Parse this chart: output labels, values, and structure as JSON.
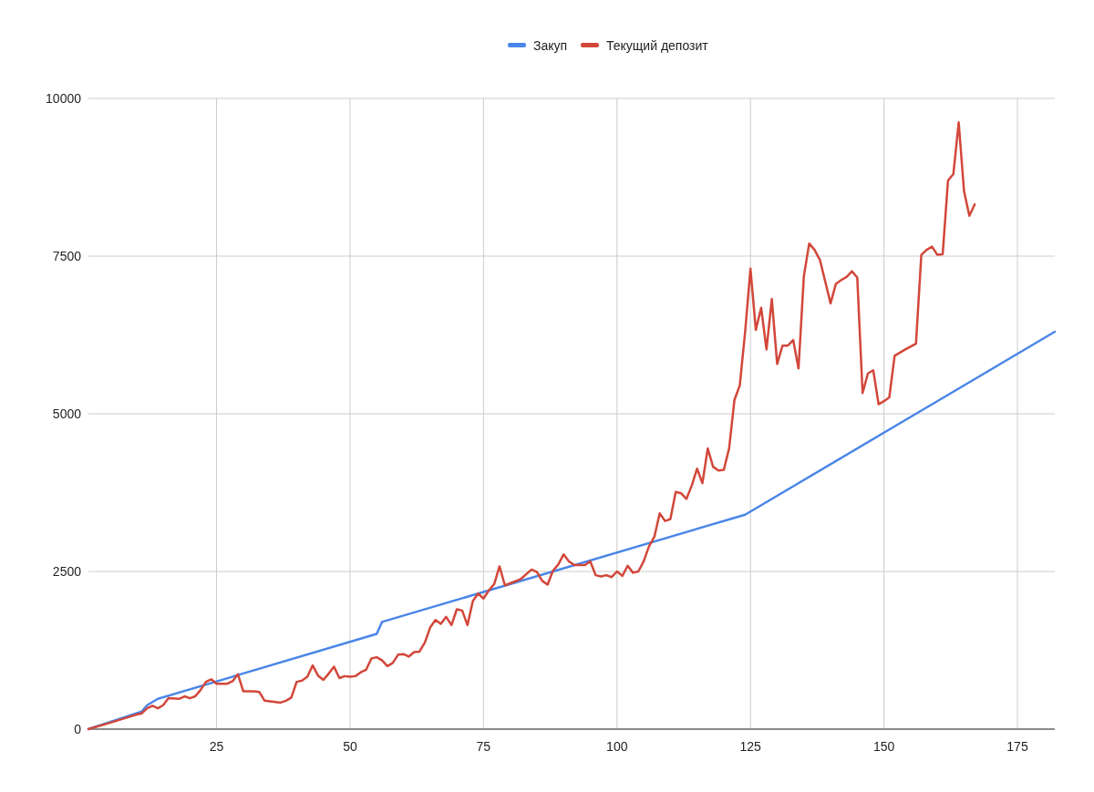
{
  "chart_data": {
    "type": "line",
    "xlim": [
      1,
      182
    ],
    "xticks": [
      25,
      50,
      75,
      100,
      125,
      150,
      175
    ],
    "ylim": [
      0,
      10000
    ],
    "yticks": [
      0,
      2500,
      5000,
      7500,
      10000
    ],
    "grid": true,
    "legend": "top",
    "series": [
      {
        "name": "Закуп",
        "color": "#4a86e8",
        "x": [
          1,
          11,
          12,
          14,
          55,
          56,
          124,
          182
        ],
        "values": [
          0,
          280,
          380,
          480,
          1510,
          1700,
          3400,
          6300
        ]
      },
      {
        "name": "Текущий депозит",
        "color": "#d2473a",
        "x": [
          1,
          5,
          10,
          11,
          12,
          13,
          14,
          15,
          16,
          18,
          19,
          20,
          21,
          22,
          23,
          24,
          25,
          27,
          28,
          29,
          30,
          32,
          33,
          34,
          36,
          37,
          38,
          39,
          40,
          41,
          42,
          43,
          44,
          45,
          46,
          47,
          48,
          49,
          50,
          51,
          52,
          53,
          54,
          55,
          56,
          57,
          58,
          59,
          60,
          61,
          62,
          63,
          64,
          65,
          66,
          67,
          68,
          69,
          70,
          71,
          72,
          73,
          74,
          75,
          76,
          77,
          78,
          79,
          82,
          84,
          85,
          86,
          87,
          88,
          89,
          90,
          91,
          92,
          94,
          95,
          96,
          97,
          98,
          99,
          100,
          101,
          102,
          103,
          104,
          105,
          106,
          107,
          108,
          109,
          110,
          111,
          112,
          113,
          114,
          115,
          116,
          117,
          118,
          119,
          120,
          121,
          122,
          123,
          124,
          125,
          126,
          127,
          128,
          129,
          130,
          131,
          132,
          133,
          134,
          135,
          136,
          137,
          138,
          139,
          140,
          141,
          142,
          143,
          144,
          145,
          146,
          147,
          148,
          149,
          150,
          151,
          152,
          154,
          156,
          157,
          158,
          159,
          160,
          161,
          162,
          163,
          164,
          165,
          166,
          167
        ],
        "values": [
          0,
          100,
          230,
          250,
          330,
          370,
          330,
          380,
          490,
          480,
          520,
          490,
          520,
          620,
          750,
          790,
          720,
          720,
          760,
          870,
          600,
          600,
          590,
          450,
          430,
          420,
          450,
          500,
          750,
          770,
          830,
          1010,
          850,
          780,
          880,
          990,
          810,
          840,
          830,
          840,
          900,
          940,
          1120,
          1140,
          1090,
          1000,
          1050,
          1180,
          1190,
          1150,
          1220,
          1230,
          1370,
          1610,
          1730,
          1670,
          1780,
          1650,
          1900,
          1880,
          1650,
          2030,
          2150,
          2070,
          2200,
          2300,
          2580,
          2280,
          2380,
          2530,
          2490,
          2350,
          2290,
          2510,
          2610,
          2770,
          2660,
          2600,
          2600,
          2660,
          2440,
          2420,
          2440,
          2410,
          2500,
          2430,
          2590,
          2480,
          2500,
          2660,
          2900,
          3050,
          3420,
          3300,
          3330,
          3760,
          3740,
          3650,
          3860,
          4130,
          3900,
          4450,
          4160,
          4100,
          4110,
          4450,
          5220,
          5450,
          6300,
          7300,
          6330,
          6680,
          6020,
          6820,
          5790,
          6080,
          6080,
          6170,
          5720,
          7180,
          7700,
          7600,
          7440,
          7100,
          6750,
          7060,
          7120,
          7170,
          7260,
          7160,
          5330,
          5640,
          5690,
          5150,
          5200,
          5260,
          5920,
          6020,
          6110,
          7520,
          7600,
          7650,
          7520,
          7530,
          8700,
          8800,
          9620,
          8530,
          8140,
          8320
        ]
      }
    ]
  }
}
